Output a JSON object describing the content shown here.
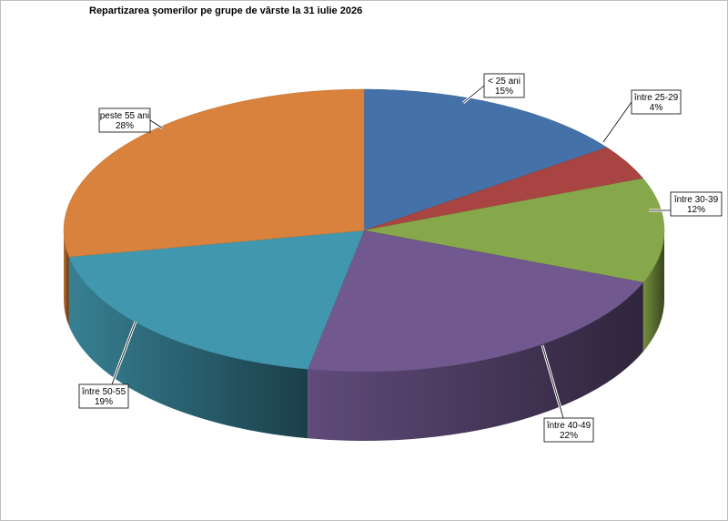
{
  "chart_data": {
    "type": "pie",
    "title": "Repartizarea şomerilor pe grupe de vârste la 31 iulie 2026",
    "slices": [
      {
        "label": "< 25 ani",
        "value": 15,
        "value_label": "15%",
        "color": "#4472a8"
      },
      {
        "label": "între 25-29",
        "value": 4,
        "value_label": "4%",
        "color": "#a84442"
      },
      {
        "label": "între 30-39",
        "value": 12,
        "value_label": "12%",
        "color": "#87a84a"
      },
      {
        "label": "între 40-49",
        "value": 22,
        "value_label": "22%",
        "color": "#71588f"
      },
      {
        "label": "între 50-55",
        "value": 19,
        "value_label": "19%",
        "color": "#4197ad"
      },
      {
        "label": "peste 55 ani",
        "value": 28,
        "value_label": "28%",
        "color": "#d8823d"
      }
    ],
    "start_angle_deg": 0,
    "direction": "clockwise",
    "style": "3d-pie",
    "legend": "none"
  }
}
